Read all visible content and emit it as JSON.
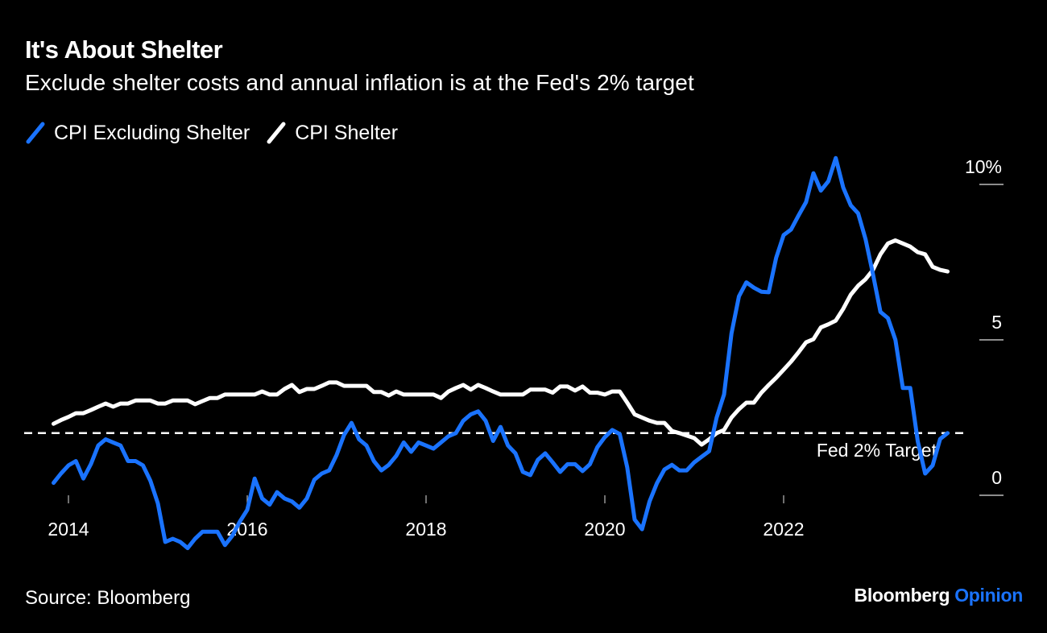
{
  "header": {
    "title": "It's About Shelter",
    "subtitle": "Exclude shelter costs and annual inflation is at the Fed's 2% target"
  },
  "footer": {
    "source": "Source: Bloomberg",
    "brand": "Bloomberg",
    "brand_accent": "Opinion"
  },
  "colors": {
    "background": "#000000",
    "blue": "#1a73ff",
    "white": "#ffffff",
    "axis": "#bbbbbb"
  },
  "chart_data": {
    "type": "line",
    "title": "It's About Shelter",
    "subtitle": "Exclude shelter costs and annual inflation is at the Fed's 2% target",
    "xlabel": "",
    "ylabel": "",
    "frequency": "monthly",
    "start": "2013-11",
    "x_ticks": [
      "2014",
      "2016",
      "2018",
      "2020",
      "2022"
    ],
    "y_ticks": [
      {
        "value": 10,
        "label": "10%"
      },
      {
        "value": 5,
        "label": "5"
      },
      {
        "value": 0,
        "label": "0"
      }
    ],
    "ylim": [
      -2,
      11
    ],
    "grid": false,
    "legend": "top-left",
    "reference_line": {
      "value": 2,
      "label": "Fed 2% Target",
      "style": "dashed"
    },
    "series": [
      {
        "name": "CPI Excluding Shelter",
        "color": "#1a73ff",
        "values": [
          0.4,
          0.7,
          0.96,
          1.1,
          0.54,
          1.0,
          1.6,
          1.8,
          1.7,
          1.6,
          1.1,
          1.1,
          0.96,
          0.47,
          -0.26,
          -1.5,
          -1.4,
          -1.5,
          -1.7,
          -1.4,
          -1.17,
          -1.17,
          -1.17,
          -1.6,
          -1.3,
          -0.85,
          -0.47,
          0.54,
          -0.1,
          -0.3,
          0.1,
          -0.1,
          -0.2,
          -0.4,
          -0.1,
          0.5,
          0.7,
          0.8,
          1.3,
          1.94,
          2.33,
          1.8,
          1.6,
          1.1,
          0.8,
          0.98,
          1.27,
          1.7,
          1.4,
          1.7,
          1.6,
          1.5,
          1.7,
          1.9,
          2.0,
          2.4,
          2.6,
          2.7,
          2.4,
          1.75,
          2.2,
          1.6,
          1.35,
          0.75,
          0.65,
          1.14,
          1.35,
          1.06,
          0.75,
          1.0,
          1.0,
          0.78,
          1.0,
          1.55,
          1.87,
          2.1,
          1.97,
          0.9,
          -0.78,
          -1.09,
          -0.2,
          0.39,
          0.83,
          0.98,
          0.8,
          0.8,
          1.06,
          1.24,
          1.42,
          2.5,
          3.24,
          5.2,
          6.4,
          6.85,
          6.68,
          6.55,
          6.53,
          7.64,
          8.37,
          8.55,
          9.0,
          9.43,
          10.36,
          9.8,
          10.1,
          10.85,
          9.9,
          9.33,
          9.07,
          8.24,
          7.1,
          5.9,
          5.7,
          5.0,
          3.45,
          3.45,
          1.74,
          0.7,
          0.96,
          1.81,
          2.0
        ]
      },
      {
        "name": "CPI Shelter",
        "color": "#ffffff",
        "values": [
          2.3,
          2.42,
          2.52,
          2.64,
          2.64,
          2.74,
          2.85,
          2.95,
          2.85,
          2.95,
          2.95,
          3.05,
          3.05,
          3.05,
          2.95,
          2.95,
          3.05,
          3.05,
          3.05,
          2.93,
          3.03,
          3.13,
          3.13,
          3.24,
          3.24,
          3.24,
          3.24,
          3.24,
          3.34,
          3.24,
          3.24,
          3.42,
          3.55,
          3.32,
          3.42,
          3.42,
          3.52,
          3.63,
          3.63,
          3.52,
          3.52,
          3.52,
          3.52,
          3.32,
          3.32,
          3.21,
          3.34,
          3.24,
          3.24,
          3.24,
          3.24,
          3.24,
          3.13,
          3.34,
          3.45,
          3.55,
          3.4,
          3.55,
          3.45,
          3.34,
          3.24,
          3.24,
          3.24,
          3.24,
          3.4,
          3.4,
          3.4,
          3.3,
          3.5,
          3.5,
          3.37,
          3.5,
          3.3,
          3.3,
          3.24,
          3.34,
          3.34,
          2.98,
          2.6,
          2.5,
          2.4,
          2.33,
          2.33,
          2.07,
          2.0,
          1.92,
          1.84,
          1.63,
          1.8,
          2.0,
          2.1,
          2.5,
          2.77,
          2.98,
          2.98,
          3.3,
          3.55,
          3.78,
          4.04,
          4.3,
          4.6,
          4.92,
          5.02,
          5.4,
          5.5,
          5.62,
          6.0,
          6.45,
          6.74,
          6.95,
          7.25,
          7.75,
          8.1,
          8.2,
          8.1,
          8.0,
          7.82,
          7.75,
          7.35,
          7.25,
          7.2
        ]
      }
    ]
  }
}
